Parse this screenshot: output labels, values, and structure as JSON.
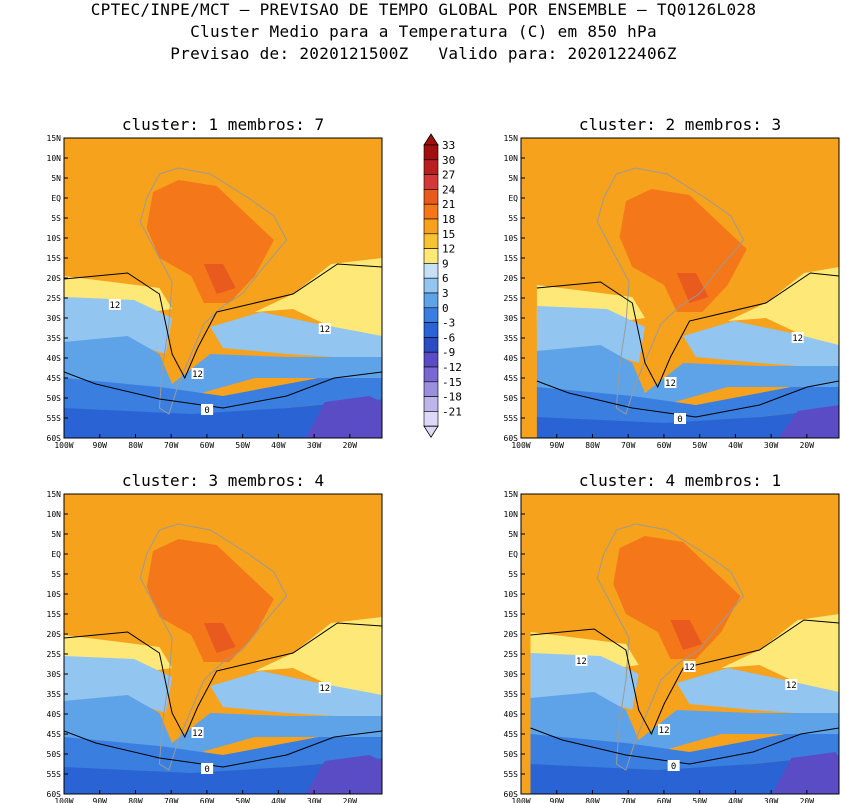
{
  "header": {
    "line1": "CPTEC/INPE/MCT – PREVISAO DE TEMPO GLOBAL POR ENSEMBLE – TQ0126L028",
    "line2": "Cluster Medio para a Temperatura (C) em 850 hPa",
    "line3": "Previsao de: 2020121500Z   Valido para: 2020122406Z"
  },
  "lat_labels": [
    "15N",
    "10N",
    "5N",
    "EQ",
    "5S",
    "10S",
    "15S",
    "20S",
    "25S",
    "30S",
    "35S",
    "40S",
    "45S",
    "50S",
    "55S",
    "60S"
  ],
  "lon_labels": [
    "100W",
    "90W",
    "80W",
    "70W",
    "60W",
    "50W",
    "40W",
    "30W",
    "20W"
  ],
  "legend": {
    "values": [
      "33",
      "30",
      "27",
      "24",
      "21",
      "18",
      "15",
      "12",
      "9",
      "6",
      "3",
      "0",
      "-3",
      "-6",
      "-9",
      "-12",
      "-15",
      "-18",
      "-21"
    ],
    "colors": [
      "#a01010",
      "#b82020",
      "#d23a3a",
      "#e85a1e",
      "#f4781a",
      "#f7a21c",
      "#f9c233",
      "#fde878",
      "#c8e0f5",
      "#92c5f0",
      "#5ea3e8",
      "#3a7fe0",
      "#2a64d4",
      "#2b4dc0",
      "#5a4cc4",
      "#7968d0",
      "#9a8fdc",
      "#bdb5ea",
      "#ddd9f6"
    ]
  },
  "panels": [
    {
      "title": "cluster: 1   membros: 7",
      "contours": [
        "12",
        "12",
        "12",
        "0"
      ]
    },
    {
      "title": "cluster: 2   membros: 3",
      "contours": [
        "12",
        "12",
        "0"
      ]
    },
    {
      "title": "cluster: 3   membros: 4",
      "contours": [
        "12",
        "12",
        "0"
      ]
    },
    {
      "title": "cluster: 4   membros: 1",
      "contours": [
        "12",
        "12",
        "12",
        "12",
        "0"
      ]
    }
  ]
}
